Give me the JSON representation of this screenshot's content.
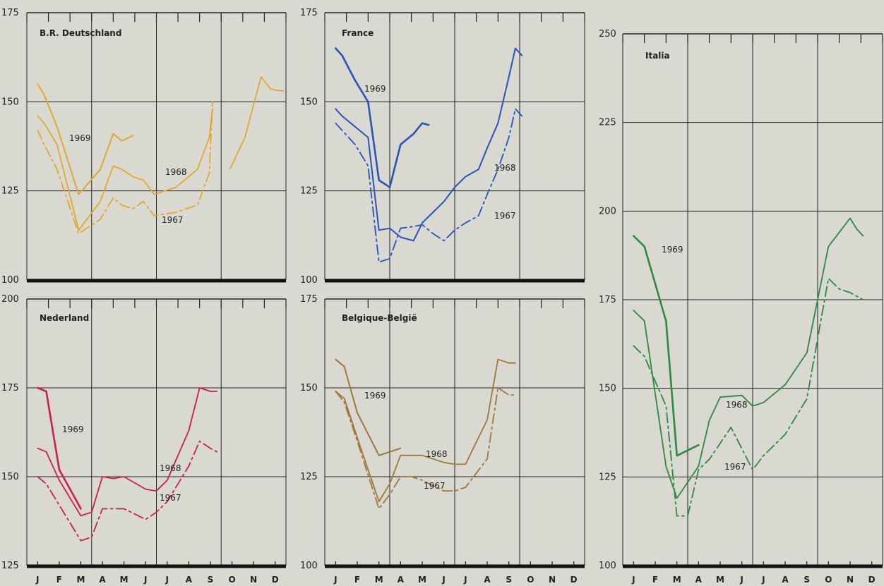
{
  "months": [
    "J",
    "F",
    "M",
    "A",
    "M",
    "J",
    "J",
    "A",
    "S",
    "O",
    "N",
    "D"
  ],
  "chart_data": [
    {
      "type": "line",
      "title": "B.R. Deutschland",
      "color": "#e0a830",
      "ylim": [
        100,
        175
      ],
      "yticks": [
        "100",
        "125",
        "150",
        "175"
      ],
      "series": [
        {
          "name": "1969",
          "style": "solid",
          "width": 2,
          "x": [
            0.0,
            0.3,
            0.9,
            1.9,
            2.9,
            3.5,
            3.9,
            4.4
          ],
          "values": [
            155,
            152,
            143,
            124,
            131,
            141,
            139,
            140.5
          ]
        },
        {
          "name": "1968",
          "style": "solid",
          "width": 1.8,
          "x": [
            0.0,
            0.3,
            0.9,
            1.9,
            2.9,
            3.5,
            3.9,
            4.4,
            4.9,
            5.4,
            6.4,
            7.4,
            7.95,
            8.1
          ],
          "values": [
            146,
            144,
            138,
            114,
            122,
            132,
            131,
            129,
            128,
            124,
            126,
            131,
            140,
            148
          ]
        },
        {
          "name": "1967",
          "style": "dashdot",
          "width": 1.8,
          "x": [
            0.0,
            0.3,
            0.9,
            1.9,
            2.9,
            3.5,
            3.9,
            4.4,
            4.9,
            5.4,
            6.4,
            7.4,
            7.95,
            8.1
          ],
          "values": [
            142,
            138,
            131,
            113,
            117,
            123,
            121,
            120,
            122,
            118,
            119,
            121,
            130,
            150
          ]
        }
      ],
      "series_overhang": [
        {
          "from_x": 8.1,
          "x": [
            8.9,
            9.6,
            10.35,
            10.8,
            11.4
          ],
          "values": [
            131,
            140,
            157,
            153.5,
            153
          ]
        }
      ]
    },
    {
      "type": "line",
      "title": "France",
      "color": "#2854b8",
      "ylim": [
        100,
        175
      ],
      "yticks": [
        "100",
        "125",
        "150",
        "175"
      ],
      "series": [
        {
          "name": "1969",
          "style": "solid",
          "width": 2.6,
          "x": [
            0.0,
            0.3,
            0.9,
            1.5,
            2.0,
            2.5,
            3.0,
            3.6,
            4.0,
            4.3
          ],
          "values": [
            165,
            163,
            156,
            150,
            128,
            126,
            138,
            141,
            144,
            143.5
          ]
        },
        {
          "name": "1968",
          "style": "solid",
          "width": 2,
          "x": [
            0.0,
            0.3,
            0.9,
            1.5,
            2.0,
            2.5,
            3.0,
            3.6,
            4.0,
            4.5,
            5.0,
            5.5,
            6.0,
            6.6,
            7.0,
            7.5,
            8.0,
            8.3,
            8.6
          ],
          "values": [
            148,
            146,
            143,
            140,
            114,
            114.5,
            112,
            111,
            116,
            119,
            122,
            126,
            129,
            131,
            137,
            144,
            157,
            165,
            163
          ]
        },
        {
          "name": "1967",
          "style": "dashdot",
          "width": 1.8,
          "x": [
            0.0,
            0.3,
            0.9,
            1.5,
            2.0,
            2.5,
            3.0,
            3.6,
            4.0,
            4.5,
            5.0,
            5.5,
            6.0,
            6.6,
            7.0,
            7.5,
            8.0,
            8.3,
            8.6
          ],
          "values": [
            144,
            142,
            138,
            132,
            105,
            106,
            114.5,
            115,
            115.5,
            113,
            111,
            114,
            116,
            118,
            124,
            131,
            140,
            148,
            146
          ]
        }
      ],
      "series_overhang": []
    },
    {
      "type": "line",
      "title": "Italia",
      "color": "#2b8a3e",
      "ylim": [
        100,
        250
      ],
      "yticks": [
        "100",
        "125",
        "150",
        "175",
        "200",
        "225",
        "250"
      ],
      "series": [
        {
          "name": "1969",
          "style": "solid",
          "width": 2.6,
          "x": [
            0.0,
            0.5,
            1.5,
            2.0,
            3.0
          ],
          "values": [
            193,
            190,
            169,
            131,
            134
          ]
        },
        {
          "name": "1968",
          "style": "solid",
          "width": 1.8,
          "x": [
            0.0,
            0.5,
            1.5,
            2.0,
            3.0,
            3.5,
            4.0,
            5.0,
            5.5,
            6.0,
            7.0,
            8.0,
            9.0,
            10.0,
            10.3,
            10.6
          ],
          "values": [
            172,
            169,
            128,
            119,
            128,
            141,
            147.5,
            148,
            145,
            146,
            151,
            160,
            190,
            198,
            195,
            193
          ]
        },
        {
          "name": "1967",
          "style": "dashdot",
          "width": 1.8,
          "x": [
            0.0,
            0.5,
            1.5,
            2.0,
            2.5,
            3.0,
            3.5,
            4.5,
            5.5,
            6.0,
            7.0,
            8.0,
            9.0,
            9.5,
            10.0,
            10.6
          ],
          "values": [
            162,
            159,
            145,
            114,
            114,
            127,
            130,
            139,
            127,
            131,
            137,
            147,
            181,
            178,
            177,
            175
          ]
        }
      ],
      "series_overhang": []
    },
    {
      "type": "line",
      "title": "Nederland",
      "color": "#c8204e",
      "ylim": [
        125,
        200
      ],
      "yticks": [
        "125",
        "150",
        "175",
        "200"
      ],
      "series": [
        {
          "name": "1969",
          "style": "solid",
          "width": 2.6,
          "x": [
            0.0,
            0.4,
            1.0,
            2.0
          ],
          "values": [
            175,
            174,
            152,
            141
          ]
        },
        {
          "name": "1968",
          "style": "solid",
          "width": 1.8,
          "x": [
            0.0,
            0.4,
            1.0,
            2.0,
            2.5,
            3.0,
            3.5,
            4.0,
            5.0,
            5.5,
            6.0,
            7.0,
            7.5,
            8.0,
            8.3
          ],
          "values": [
            158,
            157,
            149,
            139,
            140,
            150,
            149.5,
            150,
            146.5,
            146,
            149,
            163,
            175,
            174,
            174
          ]
        },
        {
          "name": "1967",
          "style": "dashdot",
          "width": 1.8,
          "x": [
            0.0,
            0.4,
            1.0,
            2.0,
            2.5,
            3.0,
            3.5,
            4.0,
            5.0,
            5.5,
            6.0,
            7.0,
            7.5,
            8.0,
            8.3
          ],
          "values": [
            150,
            148,
            142,
            132,
            133,
            141,
            141,
            141,
            138,
            140,
            143,
            153,
            160,
            158,
            157
          ]
        }
      ],
      "series_overhang": []
    },
    {
      "type": "line",
      "title": "Belgique-België",
      "color": "#a0763a",
      "ylim": [
        100,
        175
      ],
      "yticks": [
        "100",
        "125",
        "150",
        "175"
      ],
      "series": [
        {
          "name": "1969",
          "style": "solid",
          "width": 2,
          "x": [
            0.0,
            0.4,
            1.0,
            2.0,
            3.0
          ],
          "values": [
            158,
            156,
            143,
            131,
            133
          ]
        },
        {
          "name": "1968",
          "style": "solid",
          "width": 1.8,
          "x": [
            0.0,
            0.4,
            1.0,
            2.0,
            2.5,
            3.0,
            3.5,
            4.0,
            5.0,
            5.5,
            6.0,
            7.0,
            7.5,
            8.0,
            8.3
          ],
          "values": [
            149,
            147,
            136,
            118,
            123,
            131,
            131,
            131,
            129,
            128.5,
            128.5,
            141,
            158,
            157,
            157
          ]
        },
        {
          "name": "1967",
          "style": "dashdot",
          "width": 1.8,
          "x": [
            0.0,
            0.4,
            1.0,
            2.0,
            2.5,
            3.0,
            3.5,
            4.0,
            5.0,
            5.5,
            6.0,
            7.0,
            7.5,
            8.0,
            8.3
          ],
          "values": [
            149,
            146,
            135,
            116,
            120,
            125,
            125,
            124,
            121,
            121,
            122,
            130,
            150,
            148,
            148
          ]
        }
      ],
      "series_overhang": []
    }
  ]
}
